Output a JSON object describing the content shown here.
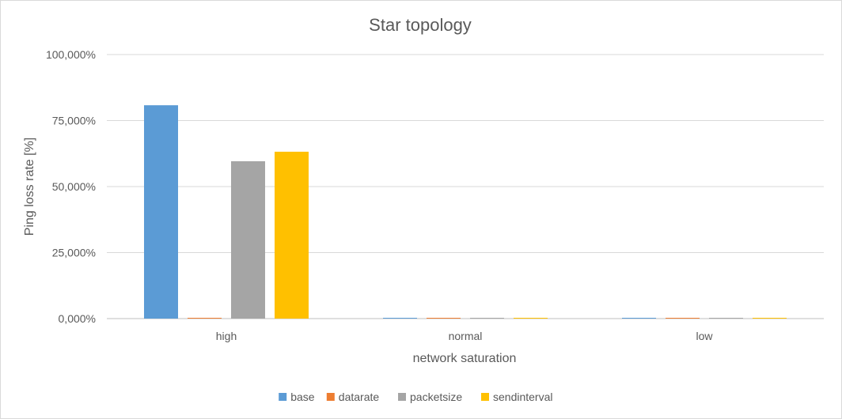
{
  "chart_data": {
    "type": "bar",
    "title": "Star topology",
    "xlabel": "network saturation",
    "ylabel": "Ping loss rate [%]",
    "categories": [
      "high",
      "normal",
      "low"
    ],
    "ylim": [
      0,
      100
    ],
    "yticks": [
      0,
      25,
      50,
      75,
      100
    ],
    "ytick_labels": [
      "0,000%",
      "25,000%",
      "50,000%",
      "75,000%",
      "100,000%"
    ],
    "grid": true,
    "legend_position": "bottom",
    "series": [
      {
        "name": "base",
        "color": "#5b9bd5",
        "values": [
          80.8,
          0.3,
          0.3
        ]
      },
      {
        "name": "datarate",
        "color": "#ed7d31",
        "values": [
          0.3,
          0.0,
          0.0
        ]
      },
      {
        "name": "packetsize",
        "color": "#a5a5a5",
        "values": [
          59.6,
          0.3,
          0.0
        ]
      },
      {
        "name": "sendinterval",
        "color": "#ffc000",
        "values": [
          63.2,
          0.3,
          0.3
        ]
      }
    ]
  }
}
